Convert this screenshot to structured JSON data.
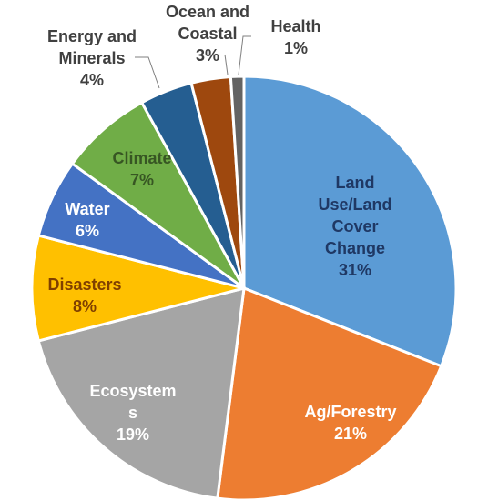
{
  "chart_data": {
    "type": "pie",
    "slices": [
      {
        "label_lines": [
          "Land",
          "Use/Land",
          "Cover",
          "Change"
        ],
        "value": 31,
        "value_label": "31%",
        "color": "#5b9bd5",
        "text_color": "#1f3864"
      },
      {
        "label_lines": [
          "Ag/Forestry"
        ],
        "value": 21,
        "value_label": "21%",
        "color": "#ed7d31",
        "text_color": "#ffffff"
      },
      {
        "label_lines": [
          "Ecosystem",
          "s"
        ],
        "value": 19,
        "value_label": "19%",
        "color": "#a5a5a5",
        "text_color": "#ffffff"
      },
      {
        "label_lines": [
          "Disasters"
        ],
        "value": 8,
        "value_label": "8%",
        "color": "#ffc000",
        "text_color": "#7f3f00"
      },
      {
        "label_lines": [
          "Water"
        ],
        "value": 6,
        "value_label": "6%",
        "color": "#4472c4",
        "text_color": "#ffffff"
      },
      {
        "label_lines": [
          "Climate"
        ],
        "value": 7,
        "value_label": "7%",
        "color": "#70ad47",
        "text_color": "#375623"
      },
      {
        "label_lines": [
          "Energy and",
          "Minerals"
        ],
        "value": 4,
        "value_label": "4%",
        "color": "#255e91",
        "text_color": "#404040"
      },
      {
        "label_lines": [
          "Ocean and",
          "Coastal"
        ],
        "value": 3,
        "value_label": "3%",
        "color": "#9e480e",
        "text_color": "#404040"
      },
      {
        "label_lines": [
          "Health"
        ],
        "value": 1,
        "value_label": "1%",
        "color": "#636363",
        "text_color": "#404040"
      }
    ],
    "start": "12 o'clock",
    "direction": "clockwise",
    "legend": "none"
  }
}
